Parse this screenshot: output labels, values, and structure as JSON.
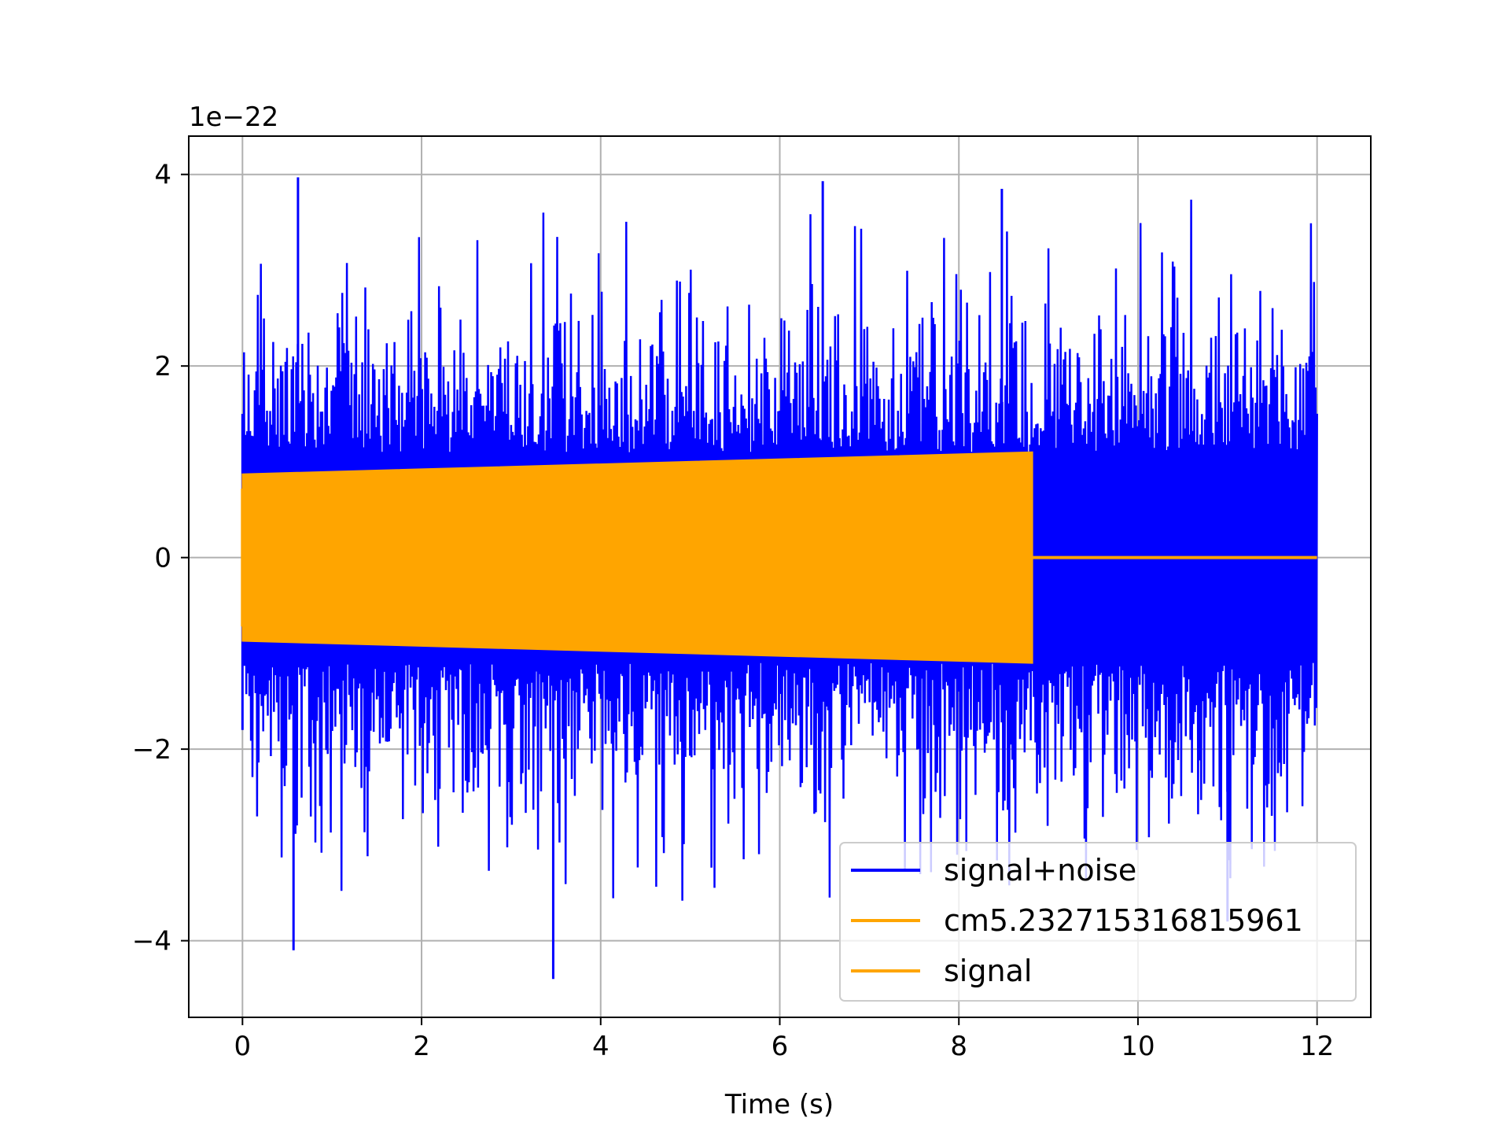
{
  "chart_data": {
    "type": "line",
    "title": "",
    "xlabel": "Time (s)",
    "ylabel": "",
    "y_scale_label": "1e−22",
    "xlim": [
      -0.6,
      12.6
    ],
    "ylim": [
      -4.8,
      4.4
    ],
    "grid": true,
    "legend_position": "lower-right",
    "x_ticks": [
      0,
      2,
      4,
      6,
      8,
      10,
      12
    ],
    "x_tick_labels": [
      "0",
      "2",
      "4",
      "6",
      "8",
      "10",
      "12"
    ],
    "y_ticks": [
      -4,
      -2,
      0,
      2,
      4
    ],
    "y_tick_labels": [
      "−4",
      "−2",
      "0",
      "2",
      "4"
    ],
    "series": [
      {
        "name": "signal+noise",
        "color": "#0000ff",
        "x_range": [
          0,
          12
        ],
        "typical_amplitude": 2.0,
        "max_peak": 3.97,
        "min_trough": -4.4
      },
      {
        "name": "cm5.232715316815961",
        "color": "#ffa500",
        "x_range": [
          0,
          12
        ],
        "values_description_points": [
          [
            0,
            0.87
          ],
          [
            8.82,
            1.1
          ],
          [
            8.82,
            0
          ],
          [
            12,
            0
          ]
        ]
      },
      {
        "name": "signal",
        "color": "#ffa500",
        "x_range": [
          0,
          12
        ],
        "envelope_start": [
          0,
          0.87
        ],
        "envelope_end": [
          8.82,
          1.1
        ],
        "zero_after": 8.82
      }
    ],
    "legend_entries": [
      "signal+noise",
      "cm5.232715316815961",
      "signal"
    ]
  }
}
